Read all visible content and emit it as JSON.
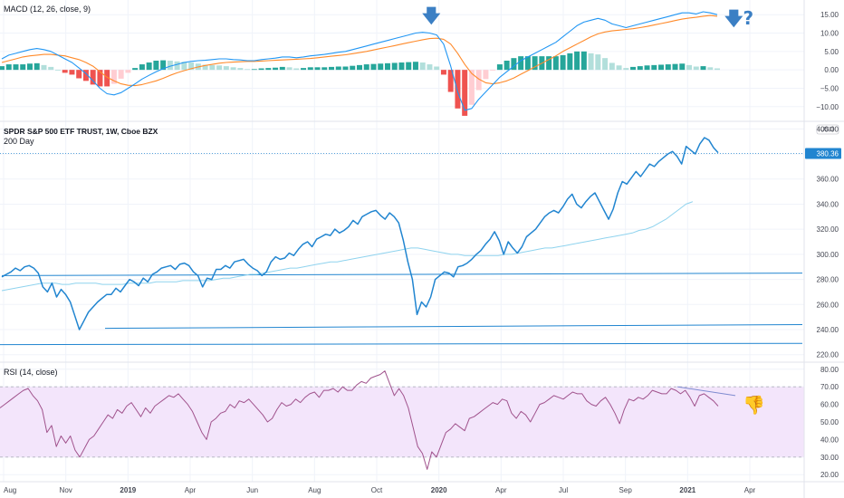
{
  "chart_data": [
    {
      "type": "bar",
      "panel": "macd",
      "legend": "MACD (12, 26, close, 9)",
      "yticks": [
        "15.00",
        "10.00",
        "5.00",
        "0.00",
        "−5.00",
        "−10.00"
      ],
      "ytick_values": [
        15,
        10,
        5,
        0,
        -5,
        -10
      ],
      "ylim": [
        -14,
        19
      ],
      "macd_line": [
        3,
        4,
        4.5,
        5,
        5.5,
        5.8,
        5.5,
        5,
        4,
        3,
        2,
        0.5,
        -1,
        -3,
        -5,
        -6.5,
        -6.8,
        -6.2,
        -5,
        -3.8,
        -2.5,
        -1.5,
        -0.5,
        0.3,
        1,
        1.5,
        2,
        2.3,
        2.5,
        2.6,
        2.8,
        3,
        3,
        2.8,
        2.7,
        2.5,
        2.5,
        2.8,
        3,
        3.2,
        3.5,
        3.5,
        3.3,
        3.5,
        3.8,
        4,
        4.2,
        4.5,
        4.8,
        5,
        5.5,
        6,
        6.5,
        7,
        7.5,
        8,
        8.5,
        9,
        9.5,
        10,
        10.2,
        10,
        9.5,
        7,
        1,
        -6,
        -11,
        -10.5,
        -8,
        -6,
        -4,
        -2,
        -0.5,
        1,
        2.5,
        3.5,
        4.5,
        5.5,
        6.5,
        7.5,
        9,
        10.5,
        12,
        13,
        13.5,
        14,
        13.5,
        12.5,
        12,
        11.5,
        12,
        12.5,
        13,
        13.5,
        14,
        14.5,
        15,
        15.5,
        15.5,
        15.2,
        15.8,
        15.5,
        15
      ],
      "signal_line": [
        2,
        2.5,
        3,
        3.5,
        3.8,
        4,
        4.2,
        4.2,
        4,
        3.8,
        3.3,
        2.8,
        2,
        1,
        -0.5,
        -2,
        -3,
        -3.8,
        -4.2,
        -4.3,
        -4,
        -3.5,
        -3,
        -2.3,
        -1.5,
        -0.8,
        -0.2,
        0.3,
        0.8,
        1.2,
        1.5,
        1.8,
        2,
        2.1,
        2.2,
        2.3,
        2.3,
        2.4,
        2.5,
        2.6,
        2.7,
        2.8,
        2.9,
        3,
        3.1,
        3.3,
        3.5,
        3.7,
        3.9,
        4.1,
        4.4,
        4.7,
        5,
        5.4,
        5.8,
        6.2,
        6.6,
        7,
        7.4,
        7.8,
        8.2,
        8.5,
        8.6,
        8.3,
        7,
        4.5,
        1.5,
        -1,
        -2.5,
        -3.5,
        -3.8,
        -3.5,
        -3,
        -2.2,
        -1.2,
        -0.2,
        0.8,
        1.8,
        2.8,
        3.8,
        5,
        6,
        7,
        8,
        9,
        9.8,
        10.3,
        10.6,
        10.8,
        11,
        11.2,
        11.5,
        11.8,
        12.2,
        12.6,
        13,
        13.4,
        13.8,
        14.1,
        14.3,
        14.6,
        14.8,
        14.6
      ],
      "histogram": [
        1,
        1.5,
        1.5,
        1.5,
        1.7,
        1.8,
        1.3,
        0.8,
        0,
        -0.8,
        -1.3,
        -2.3,
        -3,
        -4,
        -4.5,
        -4.5,
        -3.8,
        -2.4,
        -0.8,
        0.5,
        1.5,
        2,
        2.5,
        2.6,
        2.5,
        2.3,
        2.2,
        2,
        1.7,
        1.4,
        1.3,
        1.2,
        1,
        0.7,
        0.5,
        0.2,
        0.2,
        0.4,
        0.5,
        0.6,
        0.8,
        0.7,
        0.4,
        0.5,
        0.7,
        0.7,
        0.7,
        0.8,
        0.9,
        0.9,
        1.1,
        1.3,
        1.5,
        1.6,
        1.7,
        1.8,
        1.9,
        2,
        2.1,
        2.2,
        2,
        1.5,
        0.9,
        -1.3,
        -6,
        -10.5,
        -12.5,
        -9.5,
        -5.5,
        -2.5,
        -0.2,
        1.5,
        2.5,
        3.2,
        3.7,
        3.7,
        3.7,
        3.7,
        3.7,
        3.7,
        4,
        4.5,
        5,
        5,
        4.5,
        4.2,
        3.2,
        1.9,
        1.2,
        0.5,
        0.8,
        1,
        1.2,
        1.3,
        1.4,
        1.5,
        1.6,
        1.7,
        1.3,
        0.9,
        1,
        0.7,
        0.4
      ],
      "annotations": [
        "🡇",
        "🡇?"
      ]
    },
    {
      "type": "line",
      "panel": "price",
      "title": "SPDR S&P 500 ETF TRUST, 1W, Cboe BZX",
      "sub_legend": "200 Day",
      "currency": "USD",
      "last_price": "380.36",
      "yticks": [
        "400.00",
        "380.00",
        "360.00",
        "340.00",
        "320.00",
        "300.00",
        "280.00",
        "260.00",
        "240.00",
        "220.00"
      ],
      "ytick_values": [
        400,
        380,
        360,
        340,
        320,
        300,
        280,
        260,
        240,
        220
      ],
      "ylim": [
        214,
        406
      ],
      "price": [
        282,
        284,
        286,
        289,
        287,
        290,
        291,
        289,
        285,
        274,
        270,
        277,
        266,
        272,
        268,
        262,
        251,
        240,
        247,
        254,
        258,
        262,
        265,
        268,
        268,
        273,
        270,
        275,
        280,
        278,
        275,
        281,
        278,
        284,
        286,
        289,
        290,
        291,
        288,
        292,
        293,
        291,
        286,
        283,
        274,
        281,
        280,
        288,
        288,
        291,
        289,
        294,
        295,
        296,
        292,
        289,
        287,
        283,
        286,
        294,
        298,
        296,
        297,
        301,
        299,
        304,
        308,
        310,
        306,
        312,
        314,
        316,
        315,
        320,
        317,
        319,
        322,
        327,
        324,
        330,
        332,
        334,
        335,
        331,
        328,
        333,
        330,
        325,
        311,
        294,
        280,
        252,
        262,
        258,
        266,
        280,
        283,
        286,
        285,
        282,
        290,
        291,
        293,
        296,
        300,
        303,
        308,
        312,
        318,
        311,
        300,
        310,
        305,
        301,
        306,
        314,
        317,
        320,
        325,
        330,
        333,
        335,
        333,
        338,
        344,
        348,
        340,
        337,
        342,
        346,
        349,
        342,
        335,
        328,
        336,
        349,
        358,
        356,
        361,
        366,
        362,
        367,
        372,
        370,
        374,
        377,
        380,
        382,
        378,
        372,
        386,
        383,
        380,
        388,
        393,
        391,
        385,
        381
      ],
      "sma_200": [
        271,
        272,
        273,
        274,
        275,
        276,
        277,
        277,
        277,
        276,
        276,
        277,
        277,
        277,
        277,
        276,
        276,
        276,
        276,
        277,
        277,
        277,
        277,
        278,
        278,
        278,
        278,
        279,
        279,
        279,
        279,
        279,
        280,
        281,
        281,
        282,
        283,
        284,
        284,
        285,
        286,
        287,
        288,
        289,
        289,
        290,
        291,
        292,
        293,
        294,
        294,
        295,
        296,
        297,
        298,
        299,
        300,
        301,
        302,
        303,
        304,
        305,
        305,
        304,
        303,
        302,
        301,
        300,
        300,
        299,
        299,
        299,
        299,
        299,
        299,
        300,
        300,
        301,
        302,
        303,
        304,
        305,
        305,
        306,
        307,
        308,
        309,
        310,
        311,
        312,
        313,
        314,
        315,
        316,
        317,
        319,
        320,
        322,
        325,
        328,
        332,
        336,
        340,
        342
      ],
      "hlines": [
        {
          "y0": 283,
          "y1": 285,
          "label": ""
        },
        {
          "y0": 241,
          "y1": 244,
          "label": ""
        },
        {
          "y0": 228,
          "y1": 229,
          "label": ""
        },
        {
          "y0": 380.36,
          "y1": 380.36,
          "label": ""
        }
      ]
    },
    {
      "type": "line",
      "panel": "rsi",
      "legend": "RSI (14, close)",
      "yticks": [
        "80.00",
        "70.00",
        "60.00",
        "50.00",
        "40.00",
        "30.00",
        "20.00"
      ],
      "ytick_values": [
        80,
        70,
        60,
        50,
        40,
        30,
        20
      ],
      "ylim": [
        16,
        84
      ],
      "band": [
        30,
        70
      ],
      "rsi": [
        58,
        60,
        62,
        64,
        66,
        68,
        69,
        65,
        62,
        57,
        44,
        48,
        36,
        42,
        38,
        42,
        34,
        30,
        35,
        40,
        42,
        46,
        50,
        54,
        52,
        57,
        55,
        59,
        61,
        57,
        53,
        58,
        55,
        59,
        61,
        63,
        65,
        64,
        66,
        63,
        60,
        56,
        50,
        44,
        40,
        50,
        52,
        55,
        56,
        60,
        58,
        62,
        61,
        63,
        60,
        57,
        54,
        50,
        52,
        57,
        61,
        59,
        60,
        63,
        61,
        64,
        66,
        67,
        64,
        68,
        68,
        69,
        67,
        70,
        68,
        68,
        71,
        73,
        72,
        75,
        76,
        77,
        79,
        72,
        65,
        69,
        65,
        58,
        47,
        36,
        32,
        23,
        33,
        30,
        37,
        44,
        46,
        49,
        47,
        45,
        52,
        53,
        55,
        57,
        59,
        61,
        60,
        63,
        62,
        55,
        52,
        56,
        54,
        50,
        55,
        60,
        61,
        63,
        65,
        64,
        63,
        65,
        67,
        66,
        66,
        62,
        60,
        59,
        62,
        64,
        60,
        55,
        49,
        57,
        63,
        62,
        64,
        63,
        65,
        68,
        67,
        66,
        66,
        69,
        68,
        66,
        68,
        64,
        59,
        65,
        66,
        64,
        62,
        59
      ],
      "trendline": [
        [
          0,
          70
        ],
        [
          1,
          65
        ]
      ],
      "annotation": "👎"
    }
  ],
  "time_axis": {
    "labels": [
      "Aug",
      "Nov",
      "2019",
      "Apr",
      "Jun",
      "Aug",
      "Oct",
      "2020",
      "Apr",
      "Jul",
      "Sep",
      "2021",
      "Apr"
    ],
    "bold": [
      "2019",
      "2020",
      "2021"
    ]
  },
  "colors": {
    "price": "#2962ff",
    "price_line": "#2185d0",
    "sma": "#8fd3ee",
    "macd": "#2196f3",
    "signal": "#ff8a2a",
    "hist_up_strong": "#26a69a",
    "hist_up_weak": "#b2dfdb",
    "hist_down_strong": "#ef5350",
    "hist_down_weak": "#ffcdd2",
    "rsi": "#a0528c",
    "rsi_band": "#f3e5fb",
    "annotation": "#3b7fc4"
  }
}
